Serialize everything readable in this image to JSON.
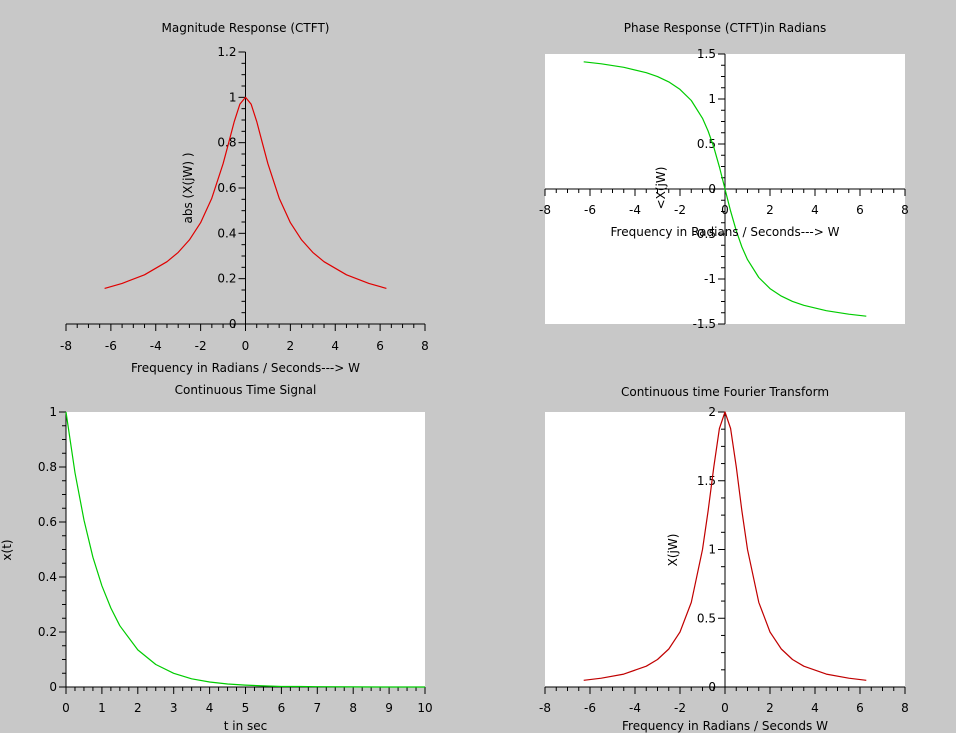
{
  "figure": {
    "background": "#c8c8c8",
    "axes_background": "#ffffff",
    "tick_color": "#000000"
  },
  "chart_data": [
    {
      "id": "magnitude",
      "type": "line",
      "title": "Magnitude Response (CTFT)",
      "xlabel": "Frequency in Radians / Seconds---> W",
      "ylabel": "abs (X(jW) )",
      "xlim": [
        -8,
        8
      ],
      "ylim": [
        0,
        1.2
      ],
      "xticks": [
        -8,
        -6,
        -4,
        -2,
        0,
        2,
        4,
        6,
        8
      ],
      "yticks": [
        0,
        0.2,
        0.4,
        0.6,
        0.8,
        1,
        1.2
      ],
      "xtick_labels": [
        "-8",
        "-6",
        "-4",
        "-2",
        "0",
        "2",
        "4",
        "6",
        "8"
      ],
      "ytick_labels": [
        "0",
        "0.2",
        "0.4",
        "0.6",
        "0.8",
        "1",
        "1.2"
      ],
      "axis_style": "centered",
      "plot_area_white": false,
      "grid": false,
      "series": [
        {
          "color": "#e00000",
          "x": [
            -6.28,
            -5.5,
            -4.5,
            -3.5,
            -3,
            -2.5,
            -2,
            -1.5,
            -1,
            -0.75,
            -0.5,
            -0.25,
            0,
            0.25,
            0.5,
            0.75,
            1,
            1.5,
            2,
            2.5,
            3,
            3.5,
            4.5,
            5.5,
            6.28
          ],
          "y": [
            0.157,
            0.179,
            0.217,
            0.275,
            0.316,
            0.371,
            0.447,
            0.555,
            0.707,
            0.8,
            0.894,
            0.97,
            1,
            0.97,
            0.894,
            0.8,
            0.707,
            0.555,
            0.447,
            0.371,
            0.316,
            0.275,
            0.217,
            0.179,
            0.157
          ]
        }
      ]
    },
    {
      "id": "phase",
      "type": "line",
      "title": "Phase Response (CTFT)in Radians",
      "xlabel": "Frequency in Radians / Seconds---> W",
      "ylabel": "<X(jW)",
      "xlim": [
        -8,
        8
      ],
      "ylim": [
        -1.5,
        1.5
      ],
      "xticks": [
        -8,
        -6,
        -4,
        -2,
        0,
        2,
        4,
        6,
        8
      ],
      "yticks": [
        -1.5,
        -1,
        -0.5,
        0,
        0.5,
        1,
        1.5
      ],
      "xtick_labels": [
        "-8",
        "-6",
        "-4",
        "-2",
        "0",
        "2",
        "4",
        "6",
        "8"
      ],
      "ytick_labels": [
        "-1.5",
        "-1",
        "-0.5",
        "0",
        "0.5",
        "1",
        "1.5"
      ],
      "axis_style": "centered",
      "plot_area_white": true,
      "grid": false,
      "series": [
        {
          "color": "#00cc00",
          "x": [
            -6.28,
            -5.5,
            -4.5,
            -3.5,
            -3,
            -2.5,
            -2,
            -1.5,
            -1,
            -0.75,
            -0.5,
            -0.25,
            0,
            0.25,
            0.5,
            0.75,
            1,
            1.5,
            2,
            2.5,
            3,
            3.5,
            4.5,
            5.5,
            6.28
          ],
          "y": [
            1.413,
            1.391,
            1.352,
            1.292,
            1.249,
            1.19,
            1.107,
            0.983,
            0.785,
            0.644,
            0.464,
            0.245,
            0,
            -0.245,
            -0.464,
            -0.644,
            -0.785,
            -0.983,
            -1.107,
            -1.19,
            -1.249,
            -1.292,
            -1.352,
            -1.391,
            -1.413
          ]
        }
      ]
    },
    {
      "id": "time-signal",
      "type": "line",
      "title": "Continuous Time Signal",
      "xlabel": "t in sec",
      "ylabel": "x(t)",
      "xlim": [
        0,
        10
      ],
      "ylim": [
        0,
        1
      ],
      "xticks": [
        0,
        1,
        2,
        3,
        4,
        5,
        6,
        7,
        8,
        9,
        10
      ],
      "yticks": [
        0,
        0.2,
        0.4,
        0.6,
        0.8,
        1
      ],
      "xtick_labels": [
        "0",
        "1",
        "2",
        "3",
        "4",
        "5",
        "6",
        "7",
        "8",
        "9",
        "10"
      ],
      "ytick_labels": [
        "0",
        "0.2",
        "0.4",
        "0.6",
        "0.8",
        "1"
      ],
      "axis_style": "box",
      "plot_area_white": true,
      "grid": false,
      "series": [
        {
          "color": "#00cc00",
          "x": [
            0,
            0.25,
            0.5,
            0.75,
            1,
            1.25,
            1.5,
            2,
            2.5,
            3,
            3.5,
            4,
            4.5,
            5,
            5.5,
            6,
            6.5,
            7,
            8,
            9,
            10
          ],
          "y": [
            1,
            0.779,
            0.607,
            0.472,
            0.368,
            0.287,
            0.223,
            0.135,
            0.082,
            0.05,
            0.03,
            0.018,
            0.011,
            0.007,
            0.004,
            0.002,
            0.002,
            0.001,
            0.0003,
            0.0001,
            0
          ]
        }
      ]
    },
    {
      "id": "ctft",
      "type": "line",
      "title": "Continuous time Fourier Transform",
      "xlabel": "Frequency in Radians / Seconds W",
      "ylabel": "X(jW)",
      "xlim": [
        -8,
        8
      ],
      "ylim": [
        0,
        2
      ],
      "xticks": [
        -8,
        -6,
        -4,
        -2,
        0,
        2,
        4,
        6,
        8
      ],
      "yticks": [
        0,
        0.5,
        1,
        1.5,
        2
      ],
      "xtick_labels": [
        "-8",
        "-6",
        "-4",
        "-2",
        "0",
        "2",
        "4",
        "6",
        "8"
      ],
      "ytick_labels": [
        "0",
        "0.5",
        "1",
        "1.5",
        "2"
      ],
      "axis_style": "centered",
      "plot_area_white": true,
      "grid": false,
      "series": [
        {
          "color": "#c00000",
          "x": [
            -6.28,
            -5.5,
            -4.5,
            -3.5,
            -3,
            -2.5,
            -2,
            -1.5,
            -1,
            -0.75,
            -0.5,
            -0.25,
            0,
            0.25,
            0.5,
            0.75,
            1,
            1.5,
            2,
            2.5,
            3,
            3.5,
            4.5,
            5.5,
            6.28
          ],
          "y": [
            0.049,
            0.064,
            0.094,
            0.151,
            0.2,
            0.276,
            0.4,
            0.615,
            1,
            1.28,
            1.6,
            1.88,
            2,
            1.88,
            1.6,
            1.28,
            1,
            0.615,
            0.4,
            0.276,
            0.2,
            0.151,
            0.094,
            0.064,
            0.049
          ]
        }
      ]
    }
  ]
}
